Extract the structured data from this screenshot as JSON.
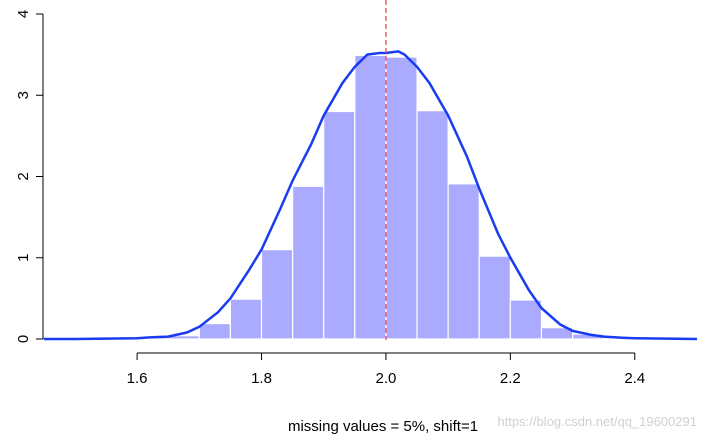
{
  "chart_data": {
    "type": "bar",
    "subtype": "histogram-with-density",
    "xlabel": "missing values = 5%, shift=1",
    "bin_edges": [
      1.45,
      1.5,
      1.55,
      1.6,
      1.65,
      1.7,
      1.75,
      1.8,
      1.85,
      1.9,
      1.95,
      2.0,
      2.05,
      2.1,
      2.15,
      2.2,
      2.25,
      2.3,
      2.35
    ],
    "values": [
      0.0,
      0.0,
      0.0,
      0.02,
      0.04,
      0.19,
      0.49,
      1.1,
      1.88,
      2.8,
      3.49,
      3.47,
      2.81,
      1.91,
      1.02,
      0.48,
      0.14,
      0.06
    ],
    "density": {
      "x": [
        1.45,
        1.5,
        1.55,
        1.6,
        1.62,
        1.65,
        1.68,
        1.7,
        1.73,
        1.75,
        1.78,
        1.8,
        1.83,
        1.85,
        1.88,
        1.9,
        1.93,
        1.95,
        1.97,
        1.99,
        2.0,
        2.02,
        2.03,
        2.05,
        2.07,
        2.1,
        2.13,
        2.15,
        2.18,
        2.2,
        2.23,
        2.25,
        2.28,
        2.3,
        2.33,
        2.35,
        2.38,
        2.4,
        2.45,
        2.5
      ],
      "y": [
        0.0,
        0.0,
        0.005,
        0.01,
        0.02,
        0.03,
        0.08,
        0.15,
        0.33,
        0.5,
        0.85,
        1.1,
        1.6,
        1.95,
        2.4,
        2.75,
        3.15,
        3.35,
        3.5,
        3.52,
        3.52,
        3.54,
        3.5,
        3.35,
        3.15,
        2.75,
        2.25,
        1.85,
        1.3,
        1.0,
        0.6,
        0.38,
        0.18,
        0.1,
        0.05,
        0.03,
        0.015,
        0.01,
        0.005,
        0.0
      ]
    },
    "vline_x": 2.0,
    "xticks": [
      "1.6",
      "1.8",
      "2.0",
      "2.2",
      "2.4"
    ],
    "xtick_values": [
      1.6,
      1.8,
      2.0,
      2.2,
      2.4
    ],
    "yticks": [
      "0",
      "1",
      "2",
      "3",
      "4"
    ],
    "ytick_values": [
      0,
      1,
      2,
      3,
      4
    ],
    "xlim": [
      1.46,
      2.5
    ],
    "ylim": [
      0,
      4
    ],
    "colors": {
      "bars": "#aaaaff",
      "bar_border": "#ffffff",
      "density": "#1a3cf0",
      "vline": "#ff4444"
    }
  },
  "watermark": "https://blog.csdn.net/qq_19600291"
}
